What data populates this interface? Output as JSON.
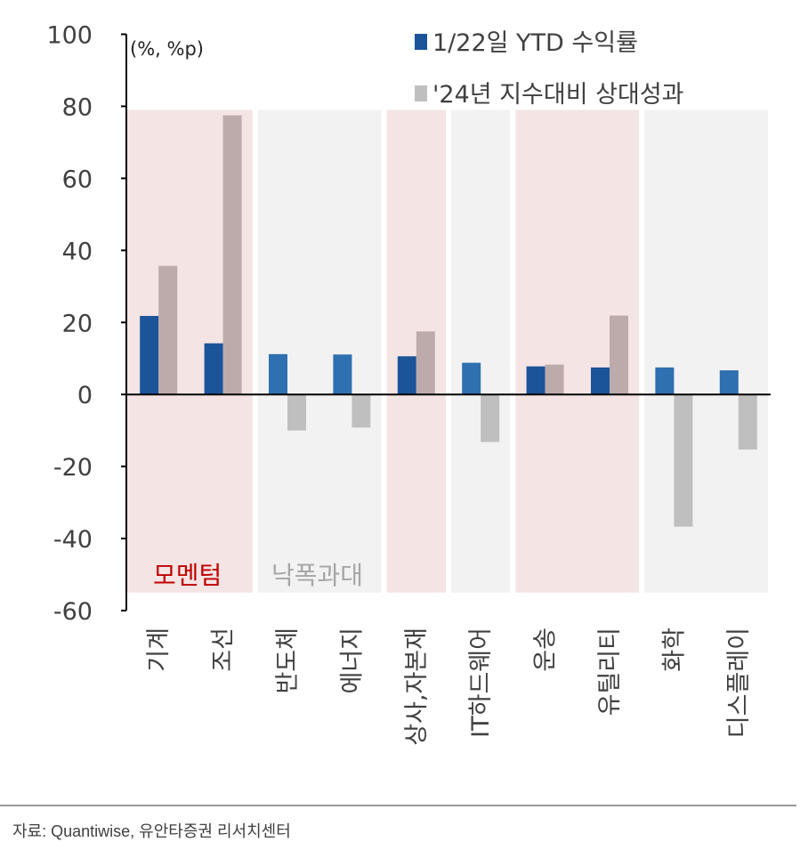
{
  "chart_data": {
    "type": "bar",
    "unit_label": "(%, %p)",
    "ylim": [
      -60,
      100
    ],
    "yticks": [
      100,
      80,
      60,
      40,
      20,
      0,
      -20,
      -40,
      -60
    ],
    "grid": false,
    "legend_placement": "top-right",
    "categories": [
      "기계",
      "조선",
      "반도체",
      "에너지",
      "상사,자본재",
      "IT하드웨어",
      "운송",
      "유틸리티",
      "화학",
      "디스플레이"
    ],
    "series": [
      {
        "name": "1/22일 YTD 수익률",
        "color": "#2E70B0",
        "values": [
          21.8,
          14.2,
          11.2,
          11.1,
          10.6,
          8.8,
          7.8,
          7.5,
          7.5,
          6.7
        ]
      },
      {
        "name": "'24년 지수대비 상대성과",
        "color": "#BFBFBF",
        "values": [
          35.7,
          77.5,
          -10.0,
          -9.2,
          17.5,
          -13.2,
          8.3,
          21.9,
          -36.7,
          -15.3
        ]
      }
    ],
    "bands": [
      {
        "kind": "momentum",
        "from": 0,
        "to": 1
      },
      {
        "kind": "oversold",
        "from": 2,
        "to": 3
      },
      {
        "kind": "momentum",
        "from": 4,
        "to": 4
      },
      {
        "kind": "oversold",
        "from": 5,
        "to": 5
      },
      {
        "kind": "momentum",
        "from": 6,
        "to": 7
      },
      {
        "kind": "oversold",
        "from": 8,
        "to": 9
      }
    ],
    "band_colors": {
      "momentum": "#F5E4E4",
      "oversold": "#F2F2F2"
    },
    "bar_colors_in_momentum": [
      "#1C5499",
      "#BDABAB"
    ],
    "annotations": [
      {
        "text": "모멘텀",
        "color": "#C00000"
      },
      {
        "text": "낙폭과대",
        "color": "#A6A6A6"
      }
    ]
  },
  "source": "자료: Quantiwise, 유안타증권 리서치센터"
}
